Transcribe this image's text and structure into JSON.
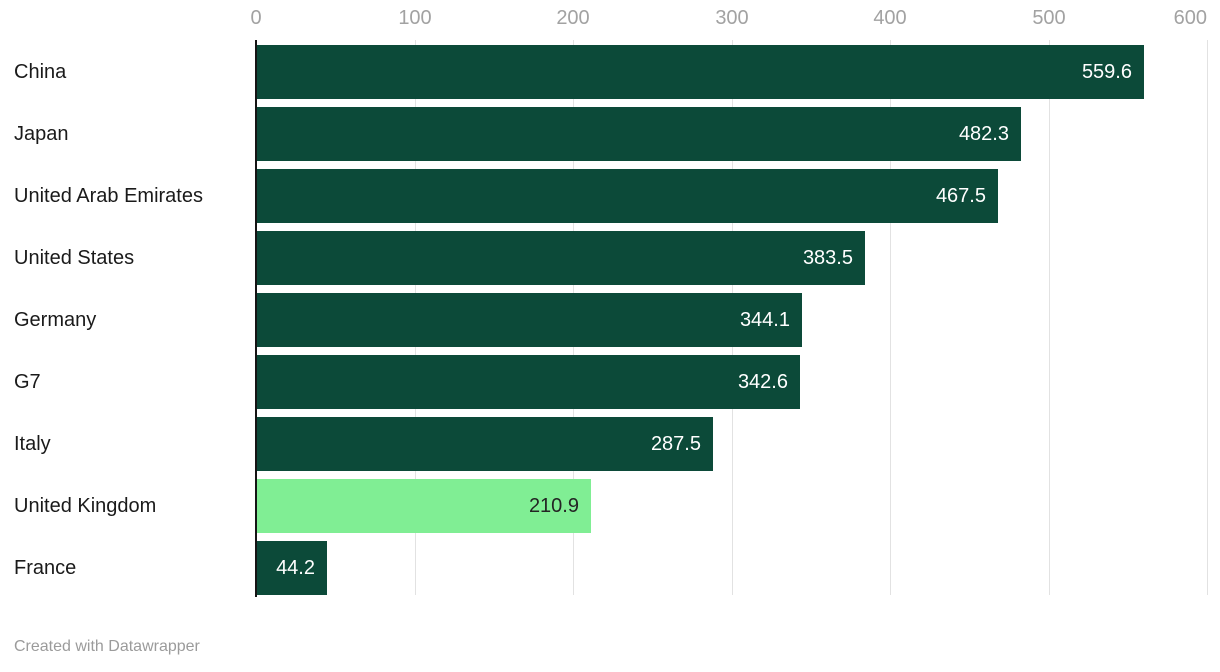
{
  "chart_data": {
    "type": "bar",
    "orientation": "horizontal",
    "title": "",
    "xlabel": "",
    "ylabel": "",
    "xlim": [
      0,
      600
    ],
    "axis_ticks": [
      0,
      100,
      200,
      300,
      400,
      500,
      600
    ],
    "grid": "vertical",
    "categories": [
      "China",
      "Japan",
      "United Arab Emirates",
      "United States",
      "Germany",
      "G7",
      "Italy",
      "United Kingdom",
      "France"
    ],
    "values": [
      559.6,
      482.3,
      467.5,
      383.5,
      344.1,
      342.6,
      287.5,
      210.9,
      44.2
    ],
    "highlight_category": "United Kingdom",
    "colors": {
      "bar": "#0c4a39",
      "highlight_bar": "#80ee94",
      "value_label": "#ffffff",
      "value_label_on_highlight": "#242424",
      "category_label": "#1a1a1a",
      "tick_label": "#a2a2a2",
      "gridline": "#e2e2e2",
      "axis_line": "#151515"
    }
  },
  "footer": {
    "credit": "Created with Datawrapper"
  }
}
